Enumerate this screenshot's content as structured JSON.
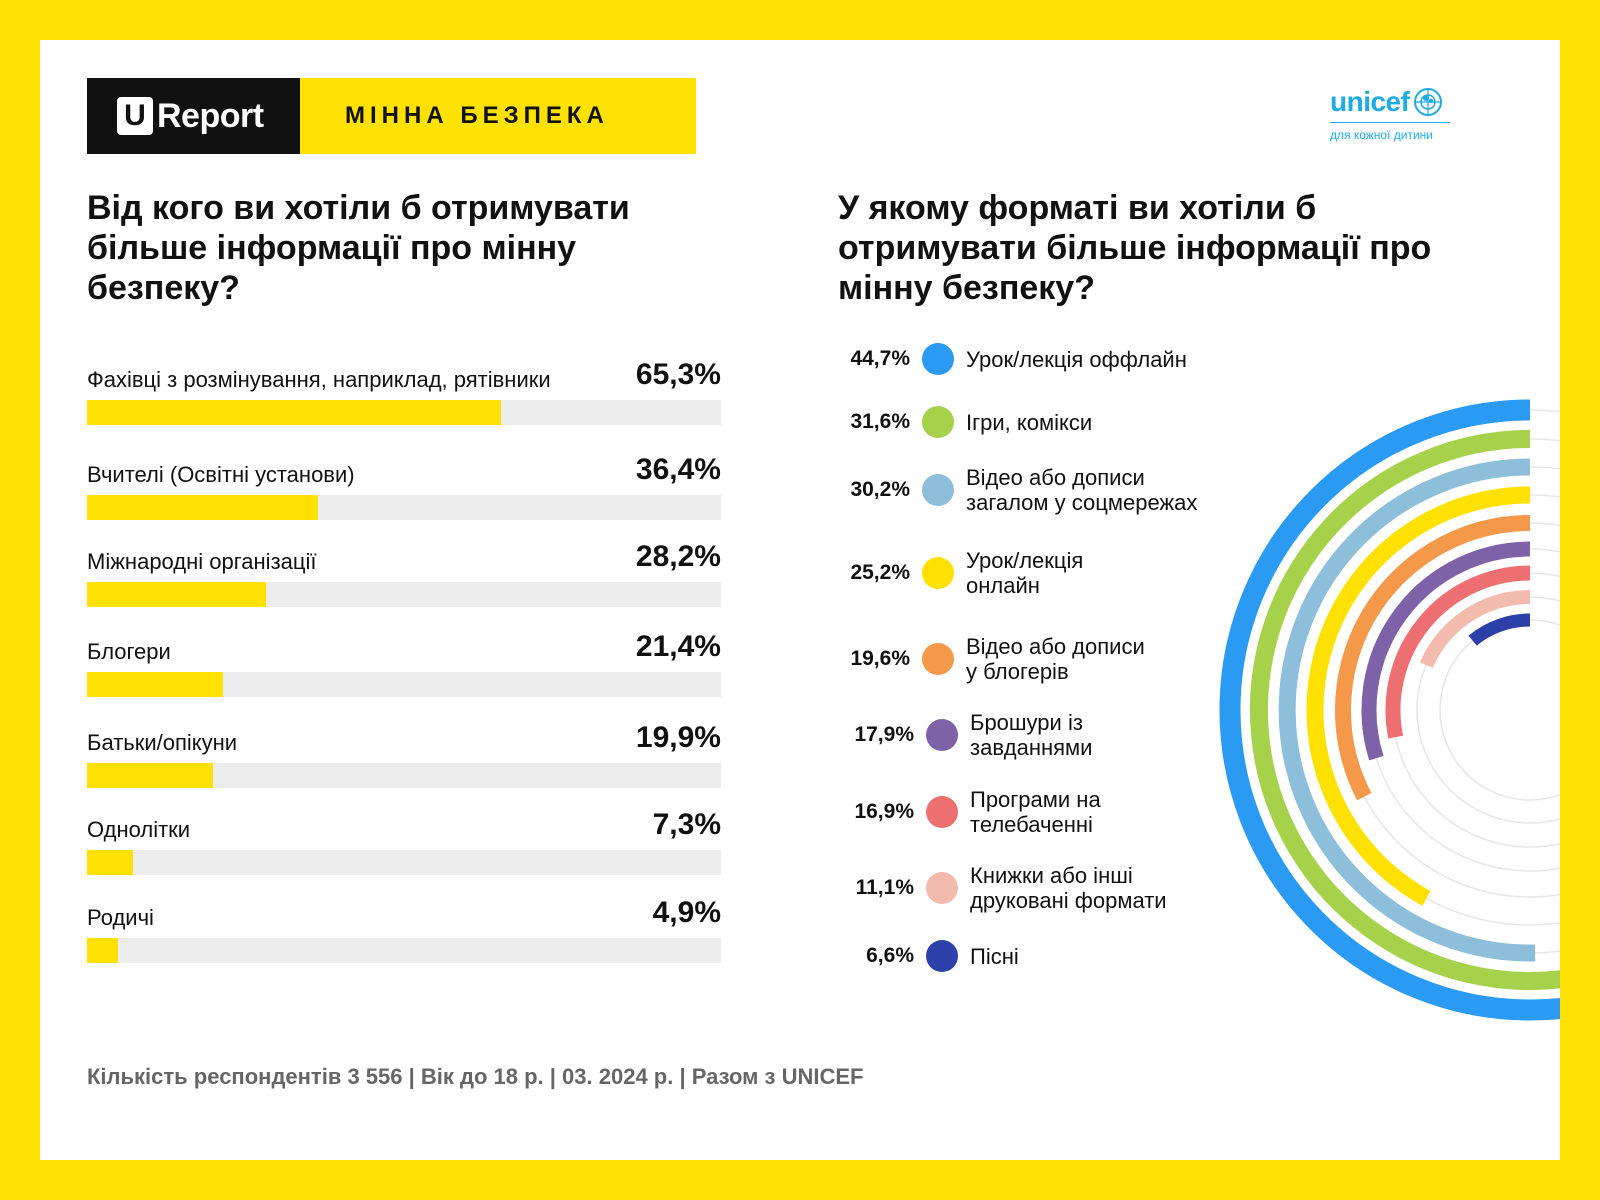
{
  "header": {
    "logo_letter": "U",
    "logo_text": "Report",
    "topic": "МІННА БЕЗПЕКА"
  },
  "unicef": {
    "name": "unicef",
    "tagline": "для кожної дитини"
  },
  "left_title": "Від кого ви хотіли б отримувати більше інформації про мінну безпеку?",
  "right_title": "У якому форматі ви хотіли б отримувати більше інформації про мінну безпеку?",
  "footer": "Кількість респондентів 3 556 | Вік до 18 р. | 03. 2024 р. | Разом з UNICEF",
  "chart_data": [
    {
      "type": "bar",
      "orientation": "horizontal",
      "title": "Від кого ви хотіли б отримувати більше інформації про мінну безпеку?",
      "categories": [
        "Фахівці з розмінування, наприклад, рятівники",
        "Вчителі (Освітні установи)",
        "Міжнародні організації",
        "Блогери",
        "Батьки/опікуни",
        "Однолітки",
        "Родичі"
      ],
      "values": [
        65.3,
        36.4,
        28.2,
        21.4,
        19.9,
        7.3,
        4.9
      ],
      "value_labels": [
        "65,3%",
        "36,4%",
        "28,2%",
        "21,4%",
        "19,9%",
        "7,3%",
        "4,9%"
      ],
      "xlim": [
        0,
        100
      ],
      "bar_color": "#FFE100",
      "track_color": "#EDEDED"
    },
    {
      "type": "radial-bar",
      "title": "У якому форматі ви хотіли б отримувати більше інформації про мінну безпеку?",
      "categories": [
        "Урок/лекція оффлайн",
        "Ігри, комікси",
        "Відео або дописи загалом у соцмережах",
        "Урок/лекція онлайн",
        "Відео або дописи у блогерів",
        "Брошури із завданнями",
        "Програми на телебаченні",
        "Книжки або інші друковані формати",
        "Пісні"
      ],
      "label_lines": [
        "Урок/лекція оффлайн",
        "Ігри, комікси",
        "Відео або дописи\nзагалом у соцмережах",
        "Урок/лекція\nонлайн",
        "Відео або дописи\nу блогерів",
        "Брошури із\nзавданнями",
        "Програми на\nтелебаченні",
        "Книжки або інші\nдруковані формати",
        "Пісні"
      ],
      "values": [
        44.7,
        31.6,
        30.2,
        25.2,
        19.6,
        17.9,
        16.9,
        11.1,
        6.6
      ],
      "value_labels": [
        "44,7%",
        "31,6%",
        "30,2%",
        "25,2%",
        "19,6%",
        "17,9%",
        "16,9%",
        "11,1%",
        "6,6%"
      ],
      "colors": [
        "#2B9AF3",
        "#A6D14A",
        "#8DBFDA",
        "#FFE100",
        "#F4984A",
        "#7E62A8",
        "#EE6F72",
        "#F2BBAE",
        "#2D3FA8"
      ],
      "scale_max_percent": 60
    }
  ]
}
